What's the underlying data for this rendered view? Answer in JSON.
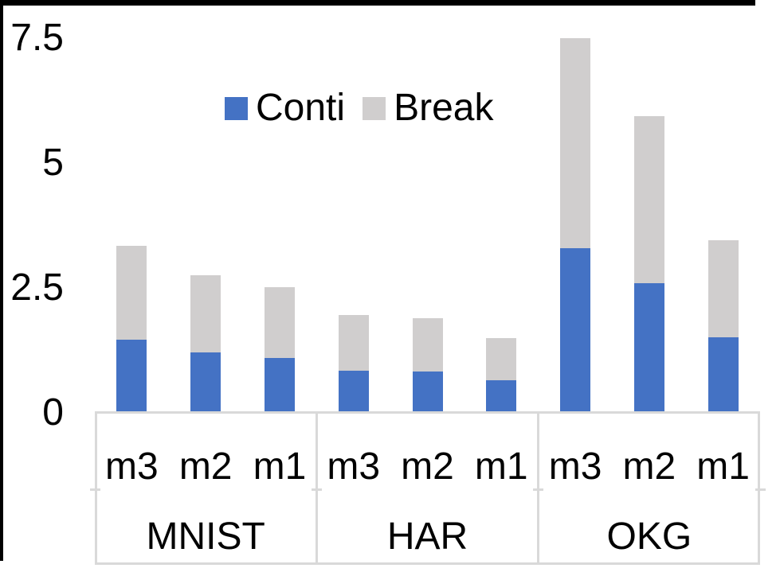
{
  "chart_data": {
    "type": "bar",
    "stacked": true,
    "title": "",
    "xlabel": "",
    "ylabel": "",
    "groups": [
      {
        "label": "MNIST",
        "categories": [
          "m3",
          "m2",
          "m1"
        ]
      },
      {
        "label": "HAR",
        "categories": [
          "m3",
          "m2",
          "m1"
        ]
      },
      {
        "label": "OKG",
        "categories": [
          "m3",
          "m2",
          "m1"
        ]
      }
    ],
    "series": [
      {
        "name": "Conti",
        "color": "#4472C4",
        "values": [
          [
            1.43,
            1.18,
            1.07
          ],
          [
            0.82,
            0.8,
            0.62
          ],
          [
            3.26,
            2.56,
            1.48
          ]
        ]
      },
      {
        "name": "Break",
        "color": "#D0CECE",
        "values": [
          [
            1.88,
            1.55,
            1.41
          ],
          [
            1.1,
            1.07,
            0.84
          ],
          [
            4.21,
            3.34,
            1.94
          ]
        ]
      }
    ],
    "totals": [
      [
        3.31,
        2.73,
        2.48
      ],
      [
        1.92,
        1.87,
        1.46
      ],
      [
        7.47,
        5.9,
        3.42
      ]
    ],
    "ylim": [
      0,
      7.5
    ],
    "yticks": [
      0,
      2.5,
      5,
      7.5
    ],
    "grid": false,
    "legend_position": "top-center",
    "axis_line_color": "#D9D9D9",
    "frame_color": "#000000"
  }
}
